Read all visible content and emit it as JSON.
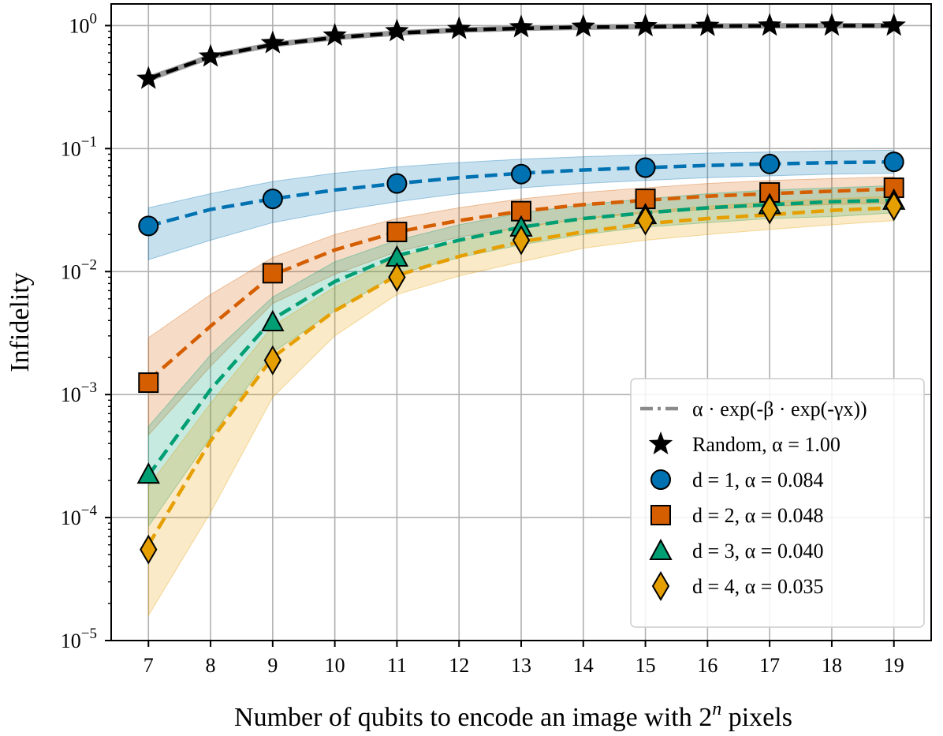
{
  "chart_data": {
    "type": "scatter",
    "xlabel": "Number of qubits to encode an image with 2",
    "xlabel_superscript": "n",
    "xlabel_suffix": " pixels",
    "ylabel": "Infidelity",
    "xlim": [
      6.4,
      19.6
    ],
    "ylim": [
      1e-05,
      1.5
    ],
    "yscale": "log",
    "grid": true,
    "legend_position": "lower-right",
    "x_ticks": [
      7,
      8,
      9,
      10,
      11,
      12,
      13,
      14,
      15,
      16,
      17,
      18,
      19
    ],
    "y_ticks": [
      {
        "value": 1e-05,
        "base": "10",
        "exp": "−5"
      },
      {
        "value": 0.0001,
        "base": "10",
        "exp": "−4"
      },
      {
        "value": 0.001,
        "base": "10",
        "exp": "−3"
      },
      {
        "value": 0.01,
        "base": "10",
        "exp": "−2"
      },
      {
        "value": 0.1,
        "base": "10",
        "exp": "−1"
      },
      {
        "value": 1,
        "base": "10",
        "exp": "0"
      }
    ],
    "fit_legend": "α · exp(-β · exp(-γx))",
    "series": [
      {
        "name": "Random, α = 1.00",
        "marker": "star",
        "color": "#000000",
        "x": [
          7,
          8,
          9,
          10,
          11,
          12,
          13,
          14,
          15,
          16,
          17,
          18,
          19
        ],
        "values": [
          0.37,
          0.56,
          0.72,
          0.83,
          0.9,
          0.94,
          0.97,
          0.98,
          0.99,
          0.995,
          1.0,
          1.0,
          1.0
        ],
        "fit": [
          0.37,
          0.56,
          0.7,
          0.8,
          0.87,
          0.92,
          0.95,
          0.97,
          0.98,
          0.99,
          0.995,
          1.0,
          1.0
        ],
        "band_low": [
          0.35,
          0.54,
          0.69,
          0.79,
          0.86,
          0.91,
          0.94,
          0.96,
          0.97,
          0.98,
          0.99,
          0.99,
          0.99
        ],
        "band_high": [
          0.39,
          0.58,
          0.72,
          0.82,
          0.89,
          0.93,
          0.96,
          0.98,
          0.99,
          1.0,
          1.0,
          1.01,
          1.01
        ]
      },
      {
        "name": "d = 1,  α = 0.084",
        "marker": "circle",
        "color": "#0072B2",
        "x": [
          7,
          9,
          11,
          13,
          15,
          17,
          19
        ],
        "values": [
          0.0235,
          0.039,
          0.052,
          0.062,
          0.07,
          0.075,
          0.078
        ],
        "fit": [
          0.0235,
          0.032,
          0.039,
          0.046,
          0.052,
          0.058,
          0.063,
          0.067,
          0.07,
          0.073,
          0.075,
          0.077,
          0.078
        ],
        "band_low": [
          0.0125,
          0.018,
          0.025,
          0.031,
          0.037,
          0.043,
          0.048,
          0.052,
          0.055,
          0.058,
          0.06,
          0.062,
          0.063
        ],
        "band_high": [
          0.033,
          0.043,
          0.054,
          0.063,
          0.071,
          0.077,
          0.082,
          0.086,
          0.089,
          0.092,
          0.094,
          0.096,
          0.097
        ]
      },
      {
        "name": "d = 2,  α = 0.048",
        "marker": "square",
        "color": "#D55E00",
        "x": [
          7,
          9,
          11,
          13,
          15,
          17,
          19
        ],
        "values": [
          0.00125,
          0.0097,
          0.021,
          0.031,
          0.039,
          0.044,
          0.048
        ],
        "fit": [
          0.0013,
          0.0036,
          0.0094,
          0.015,
          0.021,
          0.026,
          0.031,
          0.035,
          0.038,
          0.041,
          0.043,
          0.045,
          0.047
        ],
        "band_low": [
          0.00047,
          0.0017,
          0.0055,
          0.0095,
          0.0145,
          0.019,
          0.023,
          0.027,
          0.03,
          0.032,
          0.034,
          0.035,
          0.036
        ],
        "band_high": [
          0.0029,
          0.0065,
          0.013,
          0.02,
          0.027,
          0.033,
          0.039,
          0.044,
          0.048,
          0.052,
          0.055,
          0.057,
          0.059
        ]
      },
      {
        "name": "d = 3,  α = 0.040",
        "marker": "triangle",
        "color": "#009E73",
        "x": [
          7,
          9,
          11,
          13,
          15,
          17,
          19
        ],
        "values": [
          0.000225,
          0.0039,
          0.0131,
          0.023,
          0.029,
          0.035,
          0.038
        ],
        "fit": [
          0.00022,
          0.0011,
          0.0041,
          0.0083,
          0.0135,
          0.018,
          0.023,
          0.027,
          0.03,
          0.033,
          0.035,
          0.037,
          0.038
        ],
        "band_low": [
          8.5e-05,
          0.00045,
          0.0022,
          0.0048,
          0.0095,
          0.013,
          0.0165,
          0.02,
          0.023,
          0.025,
          0.027,
          0.028,
          0.03
        ],
        "band_high": [
          0.00055,
          0.0021,
          0.0062,
          0.012,
          0.018,
          0.024,
          0.03,
          0.035,
          0.039,
          0.043,
          0.046,
          0.048,
          0.05
        ]
      },
      {
        "name": "d = 4,  α = 0.035",
        "marker": "diamond",
        "color": "#E69F00",
        "x": [
          7,
          9,
          11,
          13,
          15,
          17,
          19
        ],
        "values": [
          5.5e-05,
          0.0019,
          0.009,
          0.018,
          0.026,
          0.032,
          0.034
        ],
        "fit": [
          6e-05,
          0.00042,
          0.002,
          0.0048,
          0.0093,
          0.0133,
          0.0175,
          0.021,
          0.0245,
          0.027,
          0.029,
          0.0315,
          0.033
        ],
        "band_low": [
          1.6e-05,
          0.00011,
          0.00095,
          0.003,
          0.0065,
          0.0092,
          0.012,
          0.0155,
          0.018,
          0.02,
          0.022,
          0.024,
          0.026
        ],
        "band_high": [
          0.00018,
          0.00085,
          0.0036,
          0.0075,
          0.013,
          0.018,
          0.023,
          0.027,
          0.031,
          0.034,
          0.037,
          0.039,
          0.041
        ]
      }
    ]
  }
}
